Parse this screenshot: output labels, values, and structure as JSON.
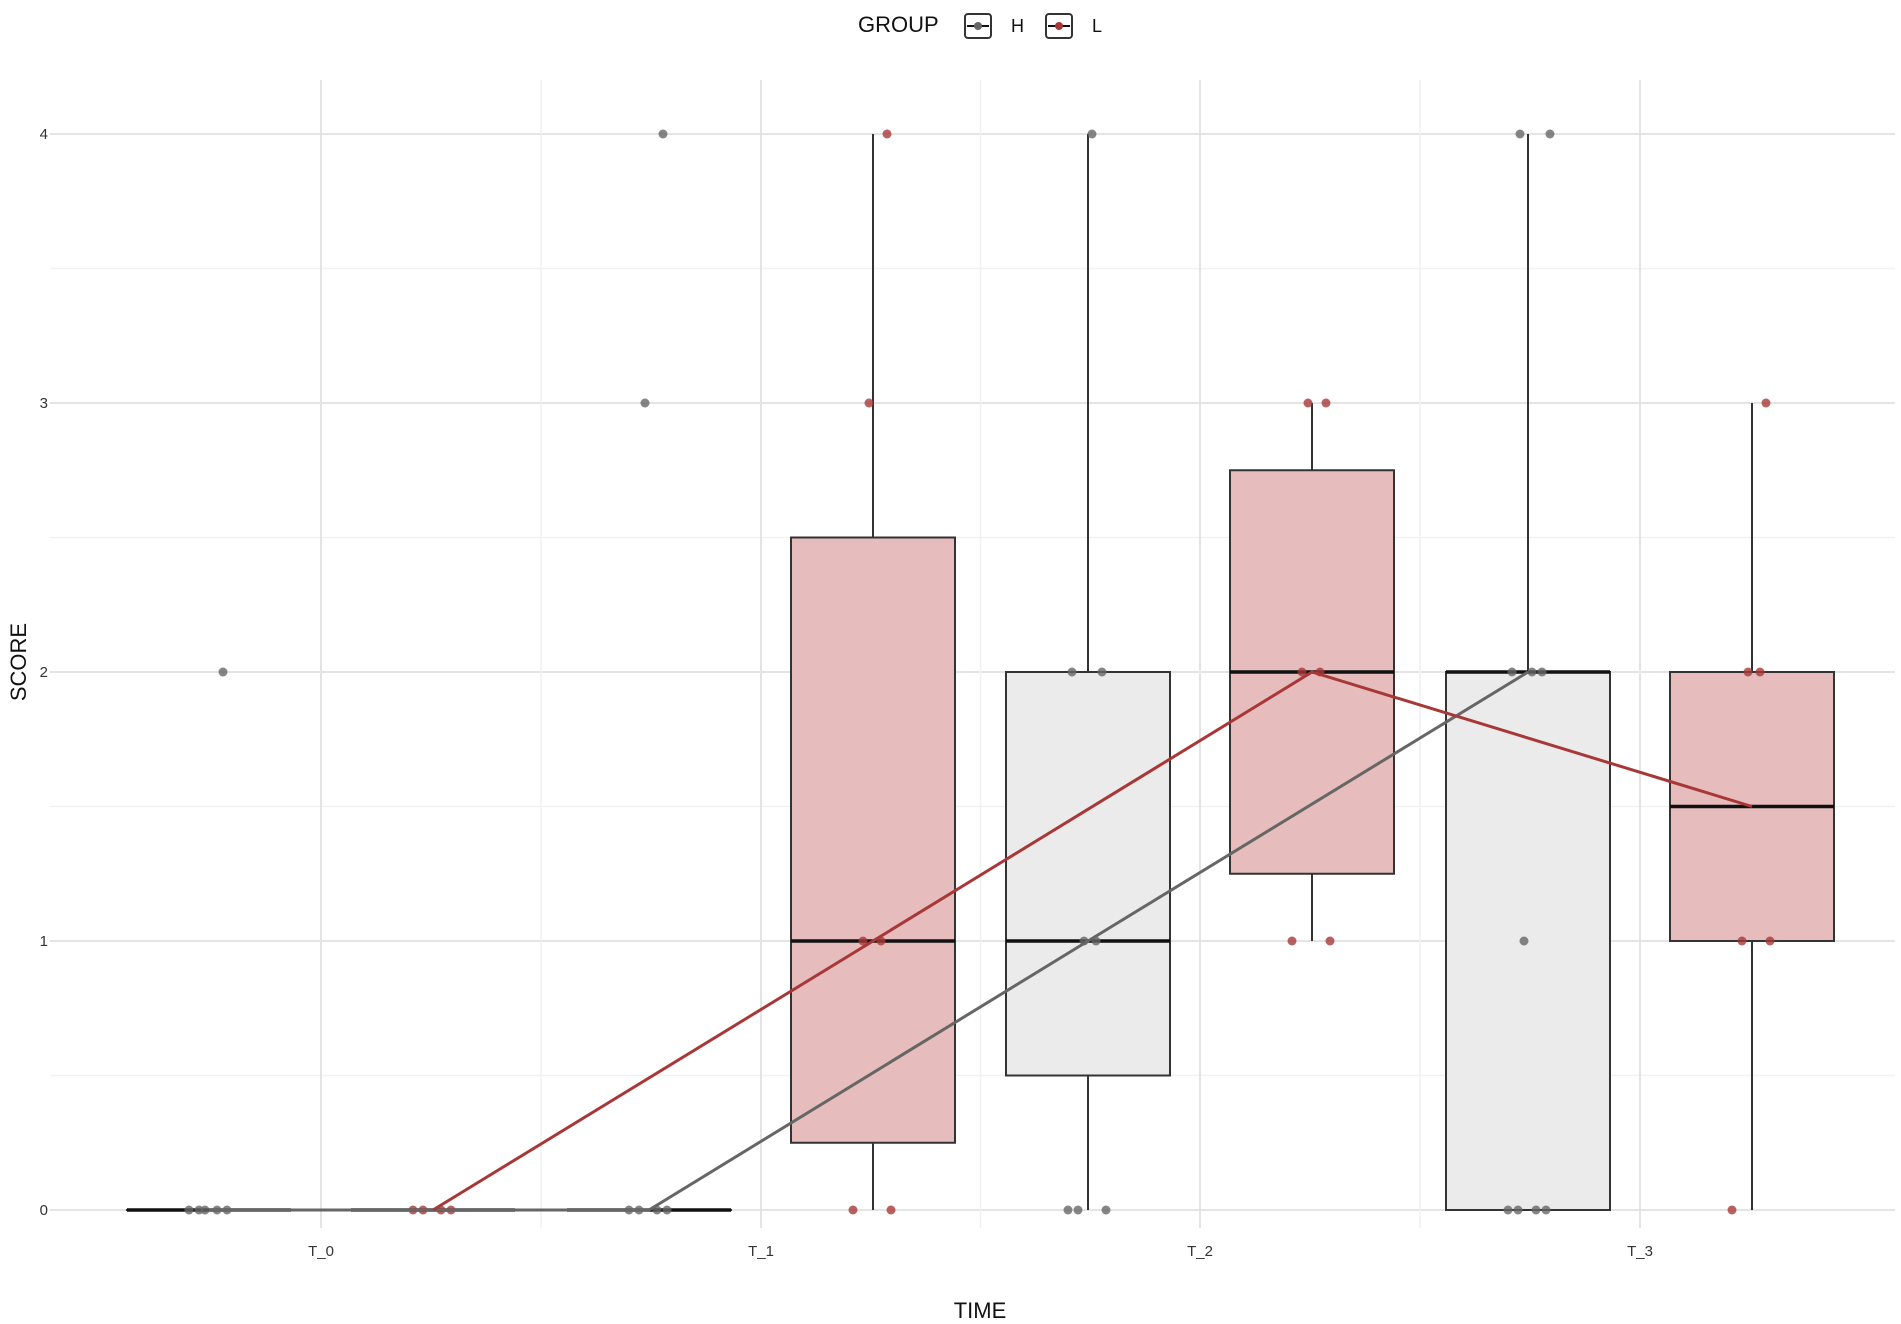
{
  "chart_data": {
    "type": "boxplot",
    "xlabel": "TIME",
    "ylabel": "SCORE",
    "categories": [
      "T_0",
      "T_1",
      "T_2",
      "T_3"
    ],
    "yticks": [
      "0",
      "1",
      "2",
      "3",
      "4"
    ],
    "ylim": [
      0,
      4
    ],
    "grid": true,
    "legend": {
      "title": "GROUP",
      "position": "top",
      "entries": [
        {
          "name": "H",
          "color": "#666666",
          "fill": "#ebebeb"
        },
        {
          "name": "L",
          "color": "#a83838",
          "fill": "#e6bcbc"
        }
      ]
    },
    "series": [
      {
        "name": "H",
        "color": "#666666",
        "fill": "#ebebeb",
        "boxes": [
          {
            "category": "T_0",
            "min": 0,
            "q1": 0,
            "median": 0,
            "q3": 0,
            "max": 0
          },
          {
            "category": "T_1",
            "min": 0,
            "q1": 0,
            "median": 0,
            "q3": 0,
            "max": 0
          },
          {
            "category": "T_2",
            "min": 0,
            "q1": 0.5,
            "median": 1,
            "q3": 2,
            "max": 4
          },
          {
            "category": "T_3",
            "min": 0,
            "q1": 0,
            "median": 2,
            "q3": 2,
            "max": 4
          }
        ],
        "points": [
          {
            "category": "T_0",
            "values": [
              0,
              0,
              0,
              0,
              0,
              2
            ]
          },
          {
            "category": "T_1",
            "values": [
              0,
              0,
              0,
              0,
              3,
              4
            ]
          },
          {
            "category": "T_2",
            "values": [
              0,
              0,
              0,
              1,
              1,
              2,
              2,
              4
            ]
          },
          {
            "category": "T_3",
            "values": [
              0,
              0,
              0,
              0,
              1,
              2,
              2,
              2,
              4,
              4
            ]
          }
        ],
        "trend": [
          0,
          0,
          1,
          2
        ]
      },
      {
        "name": "L",
        "color": "#a83838",
        "fill": "#e6bcbc",
        "boxes": [
          {
            "category": "T_0",
            "min": 0,
            "q1": 0,
            "median": 0,
            "q3": 0,
            "max": 0
          },
          {
            "category": "T_1",
            "min": 0,
            "q1": 0.25,
            "median": 1,
            "q3": 2.5,
            "max": 4
          },
          {
            "category": "T_2",
            "min": 1,
            "q1": 1.25,
            "median": 2,
            "q3": 2.75,
            "max": 3
          },
          {
            "category": "T_3",
            "min": 0,
            "q1": 1,
            "median": 1.5,
            "q3": 2,
            "max": 3
          }
        ],
        "points": [
          {
            "category": "T_0",
            "values": [
              0,
              0,
              0,
              0
            ]
          },
          {
            "category": "T_1",
            "values": [
              0,
              0,
              1,
              1,
              3,
              4
            ]
          },
          {
            "category": "T_2",
            "values": [
              1,
              1,
              2,
              2,
              3,
              3
            ]
          },
          {
            "category": "T_3",
            "values": [
              0,
              1,
              1,
              2,
              2,
              3
            ]
          }
        ],
        "trend": [
          0,
          1,
          2,
          1.5
        ]
      }
    ]
  }
}
